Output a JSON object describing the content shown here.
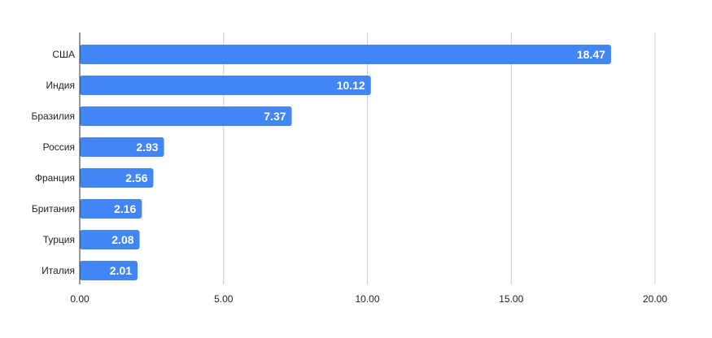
{
  "chart_data": {
    "type": "bar",
    "orientation": "horizontal",
    "categories": [
      "США",
      "Индия",
      "Бразилия",
      "Россия",
      "Франция",
      "Британия",
      "Турция",
      "Италия"
    ],
    "values": [
      18.47,
      10.12,
      7.37,
      2.93,
      2.56,
      2.16,
      2.08,
      2.01
    ],
    "value_labels": [
      "18.47",
      "10.12",
      "7.37",
      "2.93",
      "2.56",
      "2.16",
      "2.08",
      "2.01"
    ],
    "xlim": [
      0,
      20
    ],
    "xticks": [
      0,
      5,
      10,
      15,
      20
    ],
    "xtick_labels": [
      "0.00",
      "5.00",
      "10.00",
      "15.00",
      "20.00"
    ],
    "title": "",
    "xlabel": "",
    "ylabel": "",
    "grid": true,
    "legend": "none",
    "colors": {
      "bar": "#4285f4",
      "grid": "#cccccc",
      "axis": "#333333",
      "value_label": "#ffffff"
    }
  }
}
